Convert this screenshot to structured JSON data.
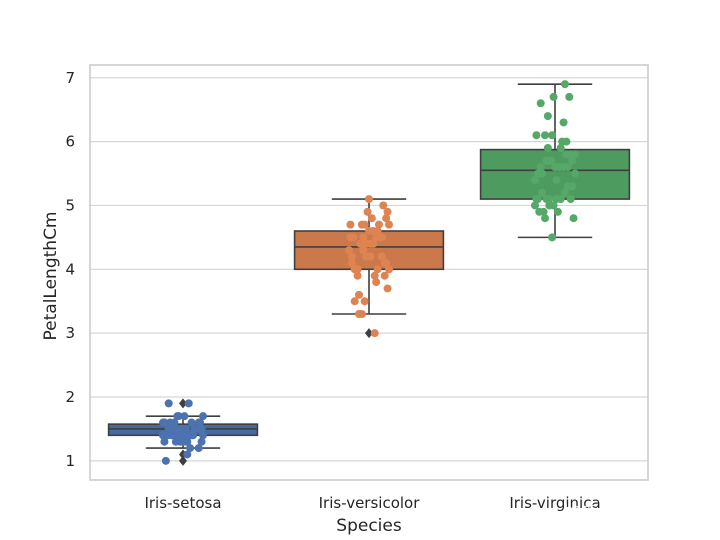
{
  "chart_data": {
    "type": "boxplot",
    "xlabel": "Species",
    "ylabel": "PetalLengthCm",
    "ylim": [
      0.7,
      7.2
    ],
    "yticks": [
      1,
      2,
      3,
      4,
      5,
      6,
      7
    ],
    "grid": "horizontal",
    "categories": [
      "Iris-setosa",
      "Iris-versicolor",
      "Iris-virginica"
    ],
    "series": [
      {
        "category": "Iris-setosa",
        "box_color": "#4c72b0",
        "point_color": "#4c72b0",
        "whisker_low": 1.2,
        "q1": 1.4,
        "median": 1.5,
        "q3": 1.575,
        "whisker_high": 1.7,
        "outliers": [
          1.0,
          1.1,
          1.9
        ],
        "points": [
          1.4,
          1.4,
          1.3,
          1.5,
          1.4,
          1.7,
          1.4,
          1.5,
          1.4,
          1.5,
          1.5,
          1.6,
          1.4,
          1.1,
          1.2,
          1.5,
          1.3,
          1.4,
          1.7,
          1.5,
          1.7,
          1.5,
          1.0,
          1.7,
          1.9,
          1.6,
          1.6,
          1.5,
          1.4,
          1.6,
          1.6,
          1.5,
          1.5,
          1.4,
          1.5,
          1.2,
          1.3,
          1.5,
          1.3,
          1.5,
          1.3,
          1.3,
          1.3,
          1.6,
          1.9,
          1.4,
          1.6,
          1.4,
          1.5,
          1.4
        ]
      },
      {
        "category": "Iris-versicolor",
        "box_color": "#dd8452",
        "point_color": "#dd8452",
        "whisker_low": 3.3,
        "q1": 4.0,
        "median": 4.35,
        "q3": 4.6,
        "whisker_high": 5.1,
        "outliers": [
          3.0
        ],
        "points": [
          4.7,
          4.5,
          4.9,
          4.0,
          4.6,
          4.5,
          4.7,
          3.3,
          4.6,
          3.9,
          3.5,
          4.2,
          4.0,
          4.7,
          3.6,
          4.4,
          4.5,
          4.1,
          4.5,
          3.9,
          4.8,
          4.0,
          4.9,
          4.7,
          4.3,
          4.4,
          4.8,
          5.0,
          4.5,
          3.5,
          3.8,
          3.7,
          3.9,
          5.1,
          4.5,
          4.5,
          4.7,
          4.4,
          4.1,
          4.0,
          4.4,
          4.6,
          4.0,
          3.3,
          4.2,
          4.2,
          4.2,
          4.3,
          3.0,
          4.1
        ]
      },
      {
        "category": "Iris-virginica",
        "box_color": "#55a868",
        "point_color": "#55a868",
        "whisker_low": 4.5,
        "q1": 5.1,
        "median": 5.55,
        "q3": 5.875,
        "whisker_high": 6.9,
        "outliers": [],
        "points": [
          6.0,
          5.1,
          5.9,
          5.6,
          5.8,
          6.6,
          4.5,
          6.3,
          5.8,
          6.1,
          5.1,
          5.3,
          5.5,
          5.0,
          5.1,
          5.3,
          5.5,
          6.7,
          6.9,
          5.0,
          5.7,
          4.9,
          6.7,
          4.9,
          5.7,
          6.0,
          4.8,
          4.9,
          5.6,
          5.8,
          6.1,
          6.4,
          5.6,
          5.1,
          5.6,
          6.1,
          5.6,
          5.5,
          4.8,
          5.4,
          5.6,
          5.1,
          5.1,
          5.9,
          5.7,
          5.2,
          5.0,
          5.2,
          5.4,
          5.1
        ]
      }
    ]
  },
  "watermark": "知乎 @Friendism"
}
